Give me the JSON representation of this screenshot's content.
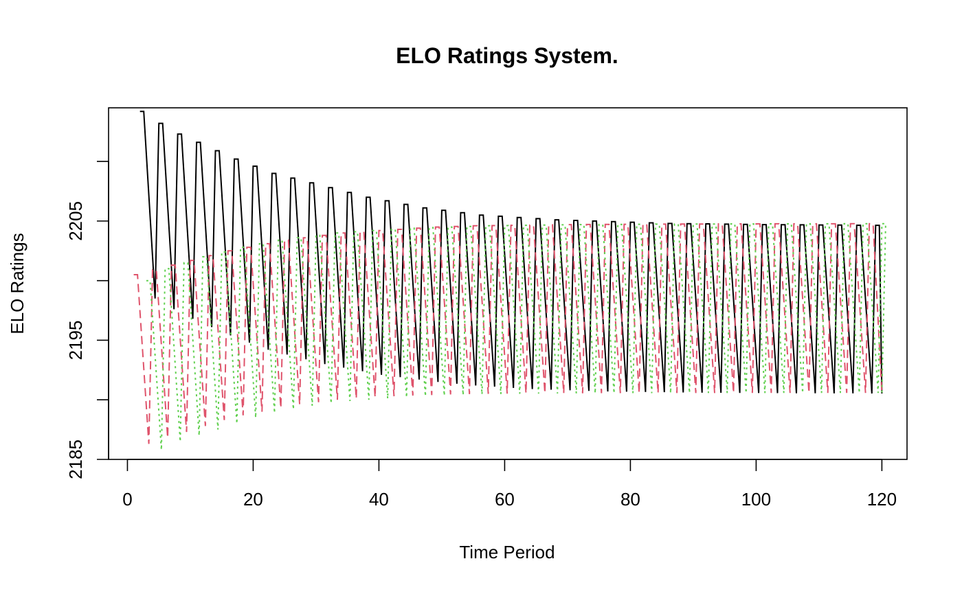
{
  "chart_data": {
    "type": "line",
    "title": "ELO Ratings System.",
    "xlabel": "Time Period",
    "ylabel": "ELO Ratings",
    "xlim": [
      -3,
      124
    ],
    "ylim": [
      2185,
      2214.5
    ],
    "x_ticks": [
      0,
      20,
      40,
      60,
      80,
      100,
      120
    ],
    "y_ticks": [
      2185,
      2190,
      2195,
      2200,
      2205,
      2210
    ],
    "y_tick_labels": [
      "2185",
      "",
      "2195",
      "",
      "2205",
      ""
    ],
    "grid": false,
    "legend": "none",
    "period_length": 3,
    "x_start": 1,
    "x_end": 120,
    "series": [
      {
        "color": "#000000",
        "linestyle": "solid",
        "offset": 1,
        "peaks": [
          2214.2,
          2213.2,
          2212.3,
          2211.6,
          2210.9,
          2210.2,
          2209.6,
          2209.0,
          2208.6,
          2208.2,
          2207.8,
          2207.4,
          2207.0,
          2206.7,
          2206.4,
          2206.1,
          2205.9,
          2205.7,
          2205.5,
          2205.4,
          2205.3,
          2205.2,
          2205.1,
          2205.05,
          2205.0,
          2204.95,
          2204.9,
          2204.85,
          2204.8,
          2204.78,
          2204.76,
          2204.74,
          2204.72,
          2204.7,
          2204.69,
          2204.68,
          2204.67,
          2204.66,
          2204.65,
          2204.64
        ],
        "troughs": [
          2198.5,
          2197.6,
          2196.8,
          2196.1,
          2195.4,
          2194.8,
          2194.2,
          2193.8,
          2193.4,
          2193.0,
          2192.7,
          2192.4,
          2192.1,
          2191.9,
          2191.7,
          2191.5,
          2191.35,
          2191.2,
          2191.1,
          2191.0,
          2190.9,
          2190.85,
          2190.8,
          2190.75,
          2190.7,
          2190.68,
          2190.66,
          2190.64,
          2190.62,
          2190.6,
          2190.59,
          2190.58,
          2190.57,
          2190.56,
          2190.55,
          2190.55,
          2190.54,
          2190.54,
          2190.53,
          2190.53
        ]
      },
      {
        "color": "#DF536B",
        "linestyle": "dashed",
        "offset": 0,
        "peaks": [
          2200.5,
          2200.9,
          2201.3,
          2201.7,
          2202.1,
          2202.5,
          2202.8,
          2203.1,
          2203.4,
          2203.6,
          2203.8,
          2204.0,
          2204.1,
          2204.2,
          2204.3,
          2204.4,
          2204.5,
          2204.55,
          2204.6,
          2204.62,
          2204.64,
          2204.66,
          2204.68,
          2204.7,
          2204.71,
          2204.72,
          2204.73,
          2204.74,
          2204.74,
          2204.75,
          2204.75,
          2204.76,
          2204.76,
          2204.76,
          2204.77,
          2204.77,
          2204.77,
          2204.77,
          2204.78,
          2204.78
        ],
        "troughs": [
          2186.3,
          2186.8,
          2187.3,
          2187.8,
          2188.3,
          2188.7,
          2189.0,
          2189.3,
          2189.6,
          2189.8,
          2190.0,
          2190.1,
          2190.2,
          2190.3,
          2190.35,
          2190.4,
          2190.45,
          2190.48,
          2190.5,
          2190.52,
          2190.53,
          2190.54,
          2190.55,
          2190.55,
          2190.56,
          2190.56,
          2190.56,
          2190.57,
          2190.57,
          2190.57,
          2190.57,
          2190.57,
          2190.58,
          2190.58,
          2190.58,
          2190.58,
          2190.58,
          2190.58,
          2190.58,
          2190.58
        ]
      },
      {
        "color": "#61D04F",
        "linestyle": "dotted",
        "offset": 2,
        "peaks": [
          2200.0,
          2201.0,
          2201.5,
          2202.0,
          2202.4,
          2202.8,
          2203.1,
          2203.4,
          2203.6,
          2203.8,
          2204.0,
          2204.1,
          2204.2,
          2204.3,
          2204.4,
          2204.45,
          2204.5,
          2204.55,
          2204.6,
          2204.62,
          2204.64,
          2204.66,
          2204.68,
          2204.7,
          2204.71,
          2204.72,
          2204.73,
          2204.74,
          2204.74,
          2204.75,
          2204.75,
          2204.76,
          2204.76,
          2204.76,
          2204.77,
          2204.77,
          2204.77,
          2204.78,
          2204.78,
          2204.78
        ],
        "troughs": [
          2185.8,
          2186.5,
          2187.0,
          2187.5,
          2188.0,
          2188.5,
          2188.9,
          2189.2,
          2189.5,
          2189.7,
          2189.9,
          2190.0,
          2190.1,
          2190.2,
          2190.3,
          2190.35,
          2190.4,
          2190.45,
          2190.48,
          2190.5,
          2190.52,
          2190.53,
          2190.54,
          2190.55,
          2190.55,
          2190.56,
          2190.56,
          2190.56,
          2190.57,
          2190.57,
          2190.57,
          2190.57,
          2190.57,
          2190.58,
          2190.58,
          2190.58,
          2190.58,
          2190.58,
          2190.58,
          2190.58
        ]
      }
    ]
  }
}
